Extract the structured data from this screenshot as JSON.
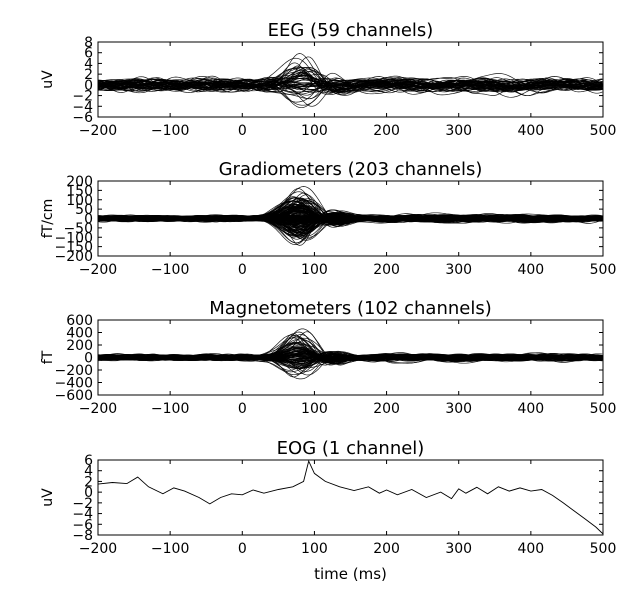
{
  "chart_data": [
    {
      "type": "line",
      "title": "EEG (59 channels)",
      "ylabel": "uV",
      "xlabel": "",
      "n_channels": 59,
      "xlim": [
        -200,
        500
      ],
      "ylim": [
        -6,
        8
      ],
      "xticks": [
        -200,
        -100,
        0,
        100,
        200,
        300,
        400,
        500
      ],
      "yticks": [
        -6,
        -4,
        -2,
        0,
        2,
        4,
        6,
        8
      ],
      "baseline_amplitude": 1.0,
      "peak_time_ms": 85,
      "peak_amplitude_max": 7,
      "peak_amplitude_min": -5.5,
      "grid": false,
      "line_color": "#000000"
    },
    {
      "type": "line",
      "title": "Gradiometers (203 channels)",
      "ylabel": "fT/cm",
      "xlabel": "",
      "n_channels": 203,
      "xlim": [
        -200,
        500
      ],
      "ylim": [
        -200,
        200
      ],
      "xticks": [
        -200,
        -100,
        0,
        100,
        200,
        300,
        400,
        500
      ],
      "yticks": [
        -200,
        -150,
        -100,
        -50,
        0,
        50,
        100,
        150,
        200
      ],
      "baseline_amplitude": 12,
      "peak_time_ms": 80,
      "peak_amplitude_max": 190,
      "peak_amplitude_min": -150,
      "grid": false,
      "line_color": "#000000"
    },
    {
      "type": "line",
      "title": "Magnetometers (102 channels)",
      "ylabel": "fT",
      "xlabel": "",
      "n_channels": 102,
      "xlim": [
        -200,
        500
      ],
      "ylim": [
        -600,
        600
      ],
      "xticks": [
        -200,
        -100,
        0,
        100,
        200,
        300,
        400,
        500
      ],
      "yticks": [
        -600,
        -400,
        -200,
        0,
        200,
        400,
        600
      ],
      "baseline_amplitude": 40,
      "peak_time_ms": 80,
      "peak_amplitude_max": 550,
      "peak_amplitude_min": -400,
      "grid": false,
      "line_color": "#000000"
    },
    {
      "type": "line",
      "title": "EOG (1 channel)",
      "ylabel": "uV",
      "xlabel": "time (ms)",
      "n_channels": 1,
      "xlim": [
        -200,
        500
      ],
      "ylim": [
        -8,
        6
      ],
      "xticks": [
        -200,
        -100,
        0,
        100,
        200,
        300,
        400,
        500
      ],
      "yticks": [
        -8,
        -6,
        -4,
        -2,
        0,
        2,
        4,
        6
      ],
      "grid": false,
      "line_color": "#000000",
      "series": [
        {
          "x": [
            -200,
            -180,
            -160,
            -145,
            -130,
            -110,
            -95,
            -80,
            -60,
            -45,
            -30,
            -15,
            0,
            15,
            30,
            50,
            70,
            85,
            92,
            100,
            115,
            135,
            155,
            175,
            190,
            200,
            215,
            235,
            255,
            275,
            290,
            300,
            310,
            325,
            340,
            355,
            370,
            385,
            400,
            415,
            430,
            445,
            460,
            475,
            490,
            500
          ],
          "values": [
            1.5,
            1.8,
            1.6,
            2.8,
            1.0,
            -0.3,
            0.8,
            0.2,
            -1.0,
            -2.2,
            -1.0,
            -0.3,
            -0.5,
            0.4,
            -0.2,
            0.5,
            1.0,
            2.0,
            5.8,
            3.5,
            2.0,
            1.0,
            0.3,
            1.0,
            -0.2,
            0.4,
            -0.5,
            0.5,
            -1.0,
            0.0,
            -1.2,
            0.6,
            -0.2,
            0.9,
            -0.3,
            1.0,
            0.2,
            0.8,
            0.2,
            0.5,
            -0.6,
            -2.0,
            -3.5,
            -5.0,
            -6.5,
            -7.8
          ]
        }
      ]
    }
  ]
}
